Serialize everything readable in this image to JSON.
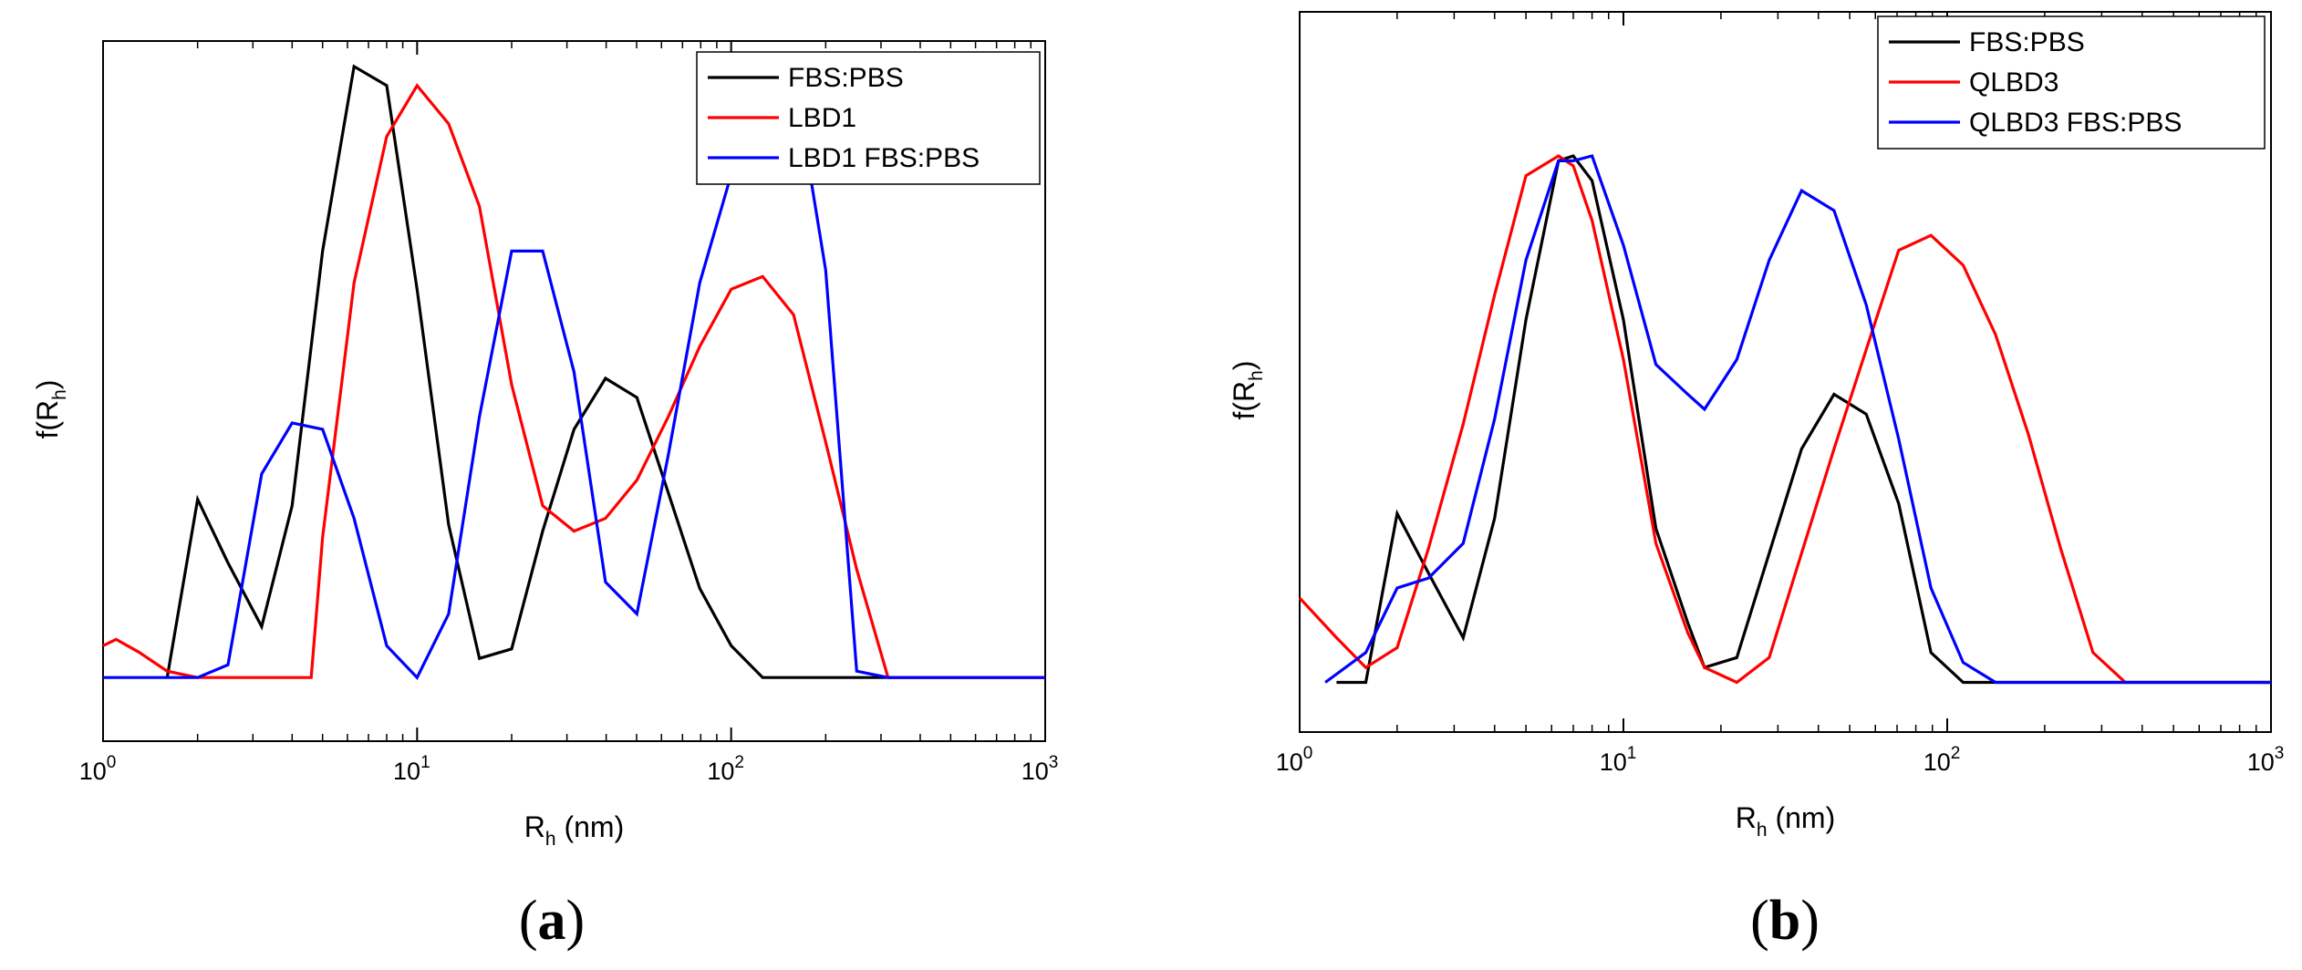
{
  "chart_data": [
    {
      "type": "line",
      "panel_label": "a",
      "xlabel": "R",
      "xlabel_sub": "h",
      "xlabel_unit": " (nm)",
      "ylabel": "f(R",
      "ylabel_sub": "h",
      "ylabel_end": ")",
      "x_scale": "log",
      "xlim": [
        1,
        1000
      ],
      "ylim": [
        -0.1,
        1.0
      ],
      "y_ticks_shown": false,
      "grid": false,
      "legend_position": "top-right",
      "x_ticks": [
        {
          "value": 1,
          "base": "10",
          "exp": "0"
        },
        {
          "value": 10,
          "base": "10",
          "exp": "1"
        },
        {
          "value": 100,
          "base": "10",
          "exp": "2"
        },
        {
          "value": 1000,
          "base": "10",
          "exp": "3"
        }
      ],
      "series": [
        {
          "name": "FBS:PBS",
          "color": "#000000",
          "x": [
            1.6,
            2.0,
            2.5,
            3.2,
            4.0,
            5.0,
            6.3,
            8.0,
            10.0,
            12.6,
            15.8,
            20.0,
            25.1,
            31.6,
            39.8,
            50.1,
            63.1,
            79.4,
            100,
            126,
            1000
          ],
          "y": [
            0.0,
            0.28,
            0.18,
            0.08,
            0.27,
            0.67,
            0.96,
            0.93,
            0.61,
            0.24,
            0.03,
            0.045,
            0.23,
            0.39,
            0.47,
            0.44,
            0.29,
            0.14,
            0.05,
            0.0,
            0.0
          ]
        },
        {
          "name": "LBD1",
          "color": "#ff0000",
          "x": [
            1.0,
            1.1,
            1.3,
            1.6,
            2.0,
            4.6,
            5.0,
            6.3,
            8.0,
            10.0,
            12.6,
            15.8,
            20.0,
            25.1,
            31.6,
            39.8,
            50.1,
            63.1,
            79.4,
            100,
            126,
            158,
            200,
            251,
            316,
            1000
          ],
          "y": [
            0.05,
            0.06,
            0.04,
            0.01,
            0.0,
            0.0,
            0.22,
            0.62,
            0.85,
            0.93,
            0.87,
            0.74,
            0.46,
            0.27,
            0.23,
            0.25,
            0.31,
            0.41,
            0.52,
            0.61,
            0.63,
            0.57,
            0.37,
            0.17,
            0.0,
            0.0
          ]
        },
        {
          "name": "LBD1 FBS:PBS",
          "color": "#0000ff",
          "x": [
            1.0,
            2.0,
            2.5,
            3.2,
            4.0,
            5.0,
            6.3,
            8.0,
            10.0,
            12.6,
            15.8,
            20.0,
            25.1,
            31.6,
            39.8,
            50.1,
            63.1,
            79.4,
            100,
            126,
            158,
            200,
            251,
            316,
            1000
          ],
          "y": [
            0.0,
            0.0,
            0.02,
            0.32,
            0.4,
            0.39,
            0.25,
            0.05,
            0.0,
            0.1,
            0.41,
            0.67,
            0.67,
            0.48,
            0.15,
            0.1,
            0.35,
            0.62,
            0.79,
            0.93,
            0.95,
            0.64,
            0.01,
            0.0,
            0.0
          ]
        }
      ]
    },
    {
      "type": "line",
      "panel_label": "b",
      "xlabel": "R",
      "xlabel_sub": "h",
      "xlabel_unit": " (nm)",
      "ylabel": "f(R",
      "ylabel_sub": "h",
      "ylabel_end": ")",
      "x_scale": "log",
      "xlim": [
        1,
        1000
      ],
      "ylim": [
        -0.1,
        1.35
      ],
      "y_ticks_shown": false,
      "grid": false,
      "legend_position": "top-right",
      "x_ticks": [
        {
          "value": 1,
          "base": "10",
          "exp": "0"
        },
        {
          "value": 10,
          "base": "10",
          "exp": "1"
        },
        {
          "value": 100,
          "base": "10",
          "exp": "2"
        },
        {
          "value": 1000,
          "base": "10",
          "exp": "3"
        }
      ],
      "series": [
        {
          "name": "FBS:PBS",
          "color": "#000000",
          "x": [
            1.3,
            1.6,
            2.0,
            2.5,
            3.2,
            4.0,
            5.0,
            6.3,
            7.0,
            8.0,
            10.0,
            12.6,
            15.8,
            17.8,
            22.4,
            28.2,
            35.5,
            44.7,
            56.2,
            70.8,
            89.1,
            112,
            1000
          ],
          "y": [
            0.0,
            0.0,
            0.34,
            0.22,
            0.09,
            0.33,
            0.73,
            1.05,
            1.06,
            1.01,
            0.73,
            0.31,
            0.12,
            0.03,
            0.05,
            0.26,
            0.47,
            0.58,
            0.54,
            0.36,
            0.06,
            0.0,
            0.0
          ]
        },
        {
          "name": "QLBD3",
          "color": "#ff0000",
          "x": [
            1.0,
            1.3,
            1.6,
            2.0,
            2.5,
            3.2,
            4.0,
            5.0,
            6.3,
            7.0,
            8.0,
            10.0,
            12.6,
            15.8,
            17.8,
            22.4,
            28.2,
            35.5,
            44.7,
            56.2,
            70.8,
            89.1,
            112,
            141,
            178,
            224,
            282,
            355,
            1000
          ],
          "y": [
            0.17,
            0.09,
            0.03,
            0.07,
            0.27,
            0.52,
            0.78,
            1.02,
            1.06,
            1.04,
            0.93,
            0.65,
            0.28,
            0.1,
            0.03,
            0.0,
            0.05,
            0.26,
            0.47,
            0.67,
            0.87,
            0.9,
            0.84,
            0.7,
            0.5,
            0.27,
            0.06,
            0.0,
            0.0
          ]
        },
        {
          "name": "QLBD3 FBS:PBS",
          "color": "#0000ff",
          "x": [
            1.2,
            1.6,
            2.0,
            2.5,
            3.2,
            4.0,
            5.0,
            6.3,
            7.0,
            8.0,
            10.0,
            12.6,
            15.8,
            17.8,
            22.4,
            28.2,
            35.5,
            44.7,
            56.2,
            70.8,
            89.1,
            112,
            141,
            1000
          ],
          "y": [
            0.0,
            0.06,
            0.19,
            0.21,
            0.28,
            0.53,
            0.85,
            1.05,
            1.05,
            1.06,
            0.88,
            0.64,
            0.58,
            0.55,
            0.65,
            0.85,
            0.99,
            0.95,
            0.76,
            0.49,
            0.19,
            0.04,
            0.0,
            0.0
          ]
        }
      ]
    }
  ]
}
